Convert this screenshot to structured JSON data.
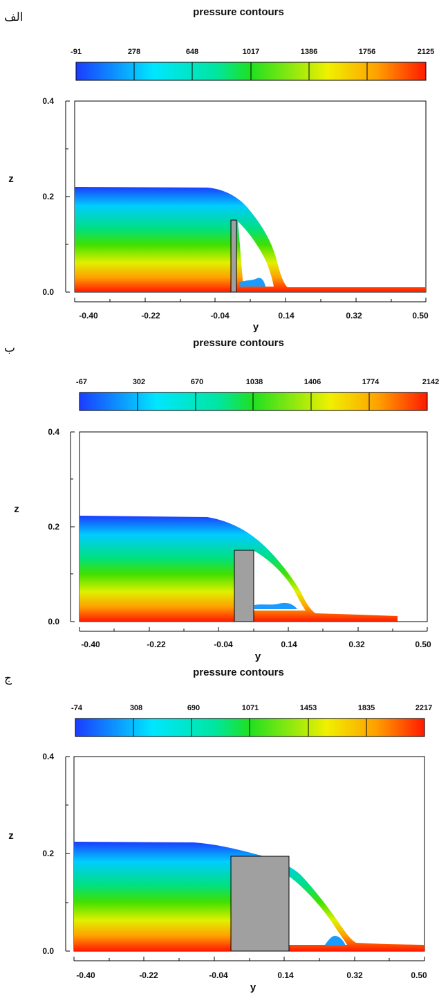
{
  "chart_data": [
    {
      "type": "contour",
      "panel_label": "الف",
      "title": "pressure contours",
      "colorbar_ticks": [
        "-91",
        "278",
        "648",
        "1017",
        "1386",
        "1756",
        "2125"
      ],
      "colorbar_range": [
        -91,
        2125
      ],
      "xlabel": "y",
      "ylabel": "z",
      "xticks": [
        "-0.40",
        "-0.22",
        "-0.04",
        "0.14",
        "0.32",
        "0.50"
      ],
      "yticks": [
        "0.0",
        "0.2",
        "0.4"
      ],
      "xlim": [
        -0.4,
        0.5
      ],
      "ylim": [
        0.0,
        0.4
      ],
      "obstacle": {
        "y_start": -0.006,
        "y_end": 0.006,
        "height": 0.15
      },
      "reservoir_height": 0.22
    },
    {
      "type": "contour",
      "panel_label": "ب",
      "title": "pressure contours",
      "colorbar_ticks": [
        "-67",
        "302",
        "670",
        "1038",
        "1406",
        "1774",
        "2142"
      ],
      "colorbar_range": [
        -67,
        2142
      ],
      "xlabel": "y",
      "ylabel": "z",
      "xticks": [
        "-0.40",
        "-0.22",
        "-0.04",
        "0.14",
        "0.32",
        "0.50"
      ],
      "yticks": [
        "0.0",
        "0.2",
        "0.4"
      ],
      "xlim": [
        -0.4,
        0.5
      ],
      "ylim": [
        0.0,
        0.4
      ],
      "obstacle": {
        "y_start": -0.01,
        "y_end": 0.04,
        "height": 0.15
      },
      "reservoir_height": 0.22
    },
    {
      "type": "contour",
      "panel_label": "ج",
      "title": "pressure contours",
      "colorbar_ticks": [
        "-74",
        "308",
        "690",
        "1071",
        "1453",
        "1835",
        "2217"
      ],
      "colorbar_range": [
        -74,
        2217
      ],
      "xlabel": "y",
      "ylabel": "z",
      "xticks": [
        "-0.40",
        "-0.22",
        "-0.04",
        "0.14",
        "0.32",
        "0.50"
      ],
      "yticks": [
        "0.0",
        "0.2",
        "0.4"
      ],
      "xlim": [
        -0.4,
        0.5
      ],
      "ylim": [
        0.0,
        0.4
      ],
      "obstacle": {
        "y_start": -0.01,
        "y_end": 0.14,
        "height": 0.15
      },
      "reservoir_height": 0.23
    }
  ],
  "colors": {
    "obstacle": "#a0a0a0",
    "colormap": [
      "#1840ff",
      "#00e0ff",
      "#00dc20",
      "#f0f000",
      "#ff1800"
    ]
  }
}
